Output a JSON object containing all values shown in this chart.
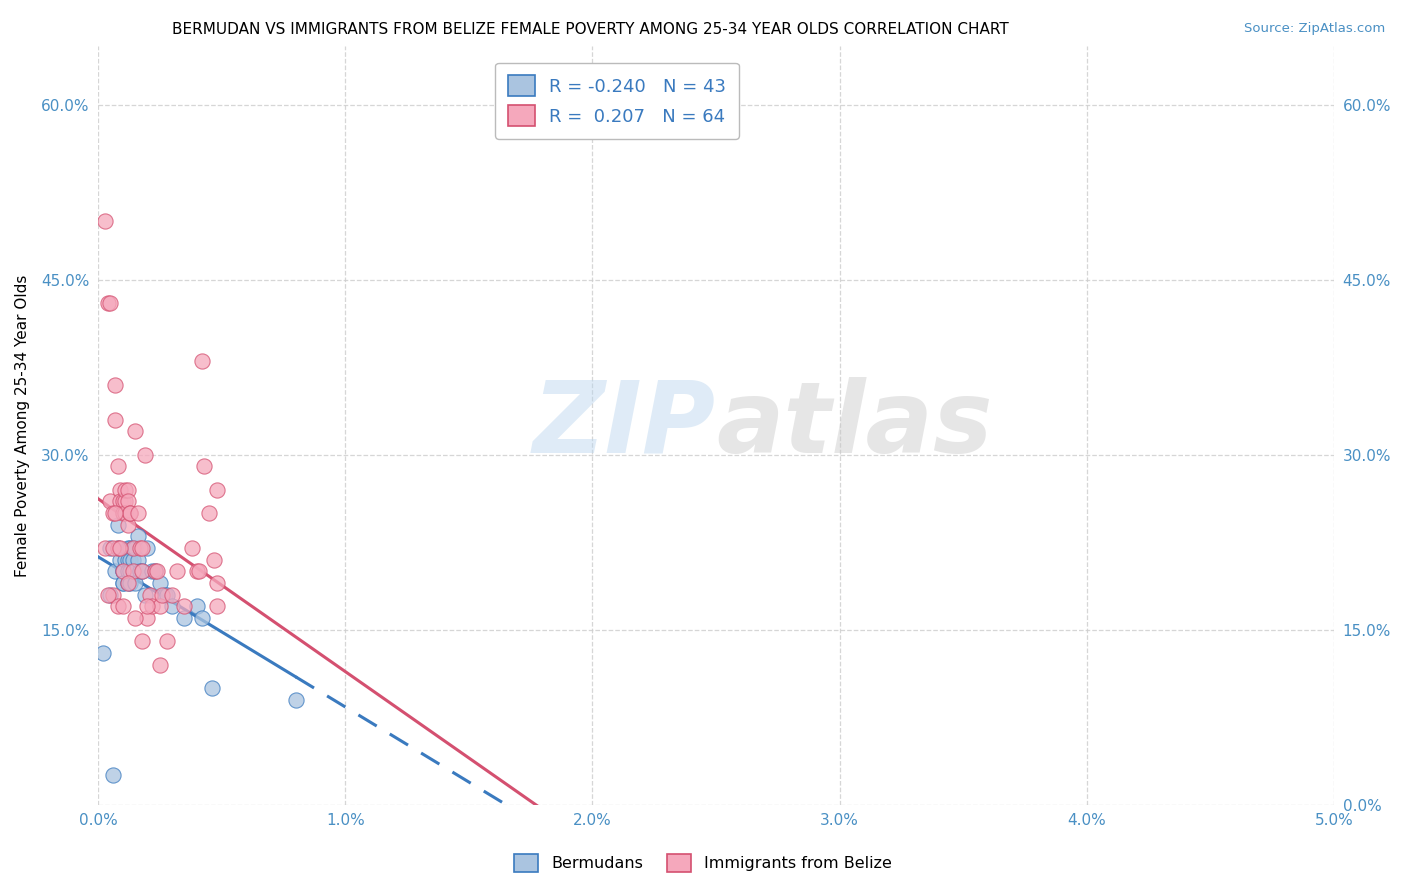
{
  "title": "BERMUDAN VS IMMIGRANTS FROM BELIZE FEMALE POVERTY AMONG 25-34 YEAR OLDS CORRELATION CHART",
  "source": "Source: ZipAtlas.com",
  "ylabel": "Female Poverty Among 25-34 Year Olds",
  "xlim": [
    0.0,
    0.05
  ],
  "ylim": [
    0.0,
    0.65
  ],
  "xticks": [
    0.0,
    0.01,
    0.02,
    0.03,
    0.04,
    0.05
  ],
  "xtick_labels": [
    "0.0%",
    "1.0%",
    "2.0%",
    "3.0%",
    "4.0%",
    "5.0%"
  ],
  "yticks": [
    0.0,
    0.15,
    0.3,
    0.45,
    0.6
  ],
  "ytick_labels": [
    "",
    "15.0%",
    "30.0%",
    "45.0%",
    "60.0%"
  ],
  "ytick_labels_right": [
    "0.0%",
    "15.0%",
    "30.0%",
    "45.0%",
    "60.0%"
  ],
  "background_color": "#ffffff",
  "grid_color": "#cccccc",
  "legend_R1": "-0.240",
  "legend_N1": "43",
  "legend_R2": "0.207",
  "legend_N2": "64",
  "color_bermuda": "#aac4e0",
  "color_belize": "#f5a8bc",
  "line_color_bermuda": "#3a7abf",
  "line_color_belize": "#d45070",
  "bermuda_x": [
    0.0002,
    0.0005,
    0.0005,
    0.0007,
    0.0008,
    0.0008,
    0.0009,
    0.001,
    0.001,
    0.001,
    0.001,
    0.0011,
    0.0012,
    0.0012,
    0.0012,
    0.0012,
    0.0013,
    0.0013,
    0.0013,
    0.0013,
    0.0014,
    0.0014,
    0.0015,
    0.0015,
    0.0015,
    0.0016,
    0.0016,
    0.0017,
    0.0018,
    0.0019,
    0.002,
    0.0022,
    0.0023,
    0.0025,
    0.0027,
    0.0028,
    0.003,
    0.0035,
    0.004,
    0.0042,
    0.0046,
    0.008,
    0.0006
  ],
  "bermuda_y": [
    0.13,
    0.22,
    0.18,
    0.2,
    0.24,
    0.22,
    0.21,
    0.2,
    0.2,
    0.19,
    0.19,
    0.21,
    0.22,
    0.21,
    0.2,
    0.19,
    0.22,
    0.21,
    0.2,
    0.19,
    0.22,
    0.21,
    0.22,
    0.2,
    0.19,
    0.23,
    0.21,
    0.2,
    0.2,
    0.18,
    0.22,
    0.2,
    0.2,
    0.19,
    0.18,
    0.18,
    0.17,
    0.16,
    0.17,
    0.16,
    0.1,
    0.09,
    0.025
  ],
  "belize_x": [
    0.0003,
    0.0003,
    0.0004,
    0.0005,
    0.0005,
    0.0006,
    0.0007,
    0.0007,
    0.0008,
    0.0008,
    0.0009,
    0.0009,
    0.001,
    0.001,
    0.001,
    0.0011,
    0.0011,
    0.0011,
    0.0012,
    0.0012,
    0.0012,
    0.0013,
    0.0013,
    0.0014,
    0.0014,
    0.0015,
    0.0016,
    0.0017,
    0.0018,
    0.0018,
    0.0019,
    0.002,
    0.0021,
    0.0022,
    0.0023,
    0.0024,
    0.0025,
    0.0026,
    0.0028,
    0.003,
    0.0032,
    0.0035,
    0.0038,
    0.004,
    0.0041,
    0.0042,
    0.0043,
    0.0045,
    0.0047,
    0.0048,
    0.0006,
    0.0006,
    0.0007,
    0.0008,
    0.0009,
    0.001,
    0.0012,
    0.0015,
    0.0018,
    0.002,
    0.0025,
    0.0048,
    0.0048,
    0.0004
  ],
  "belize_y": [
    0.22,
    0.5,
    0.43,
    0.43,
    0.26,
    0.25,
    0.36,
    0.33,
    0.22,
    0.29,
    0.27,
    0.26,
    0.26,
    0.25,
    0.2,
    0.26,
    0.27,
    0.25,
    0.27,
    0.26,
    0.24,
    0.25,
    0.25,
    0.22,
    0.2,
    0.32,
    0.25,
    0.22,
    0.22,
    0.2,
    0.3,
    0.16,
    0.18,
    0.17,
    0.2,
    0.2,
    0.17,
    0.18,
    0.14,
    0.18,
    0.2,
    0.17,
    0.22,
    0.2,
    0.2,
    0.38,
    0.29,
    0.25,
    0.21,
    0.19,
    0.18,
    0.22,
    0.25,
    0.17,
    0.22,
    0.17,
    0.19,
    0.16,
    0.14,
    0.17,
    0.12,
    0.17,
    0.27,
    0.18
  ]
}
